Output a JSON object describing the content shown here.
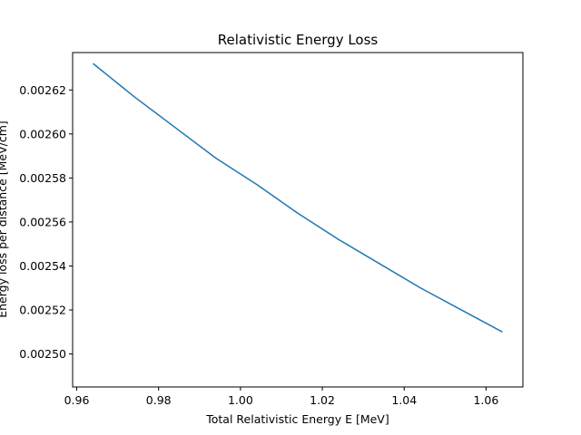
{
  "chart_data": {
    "type": "line",
    "title": "Relativistic Energy Loss",
    "xlabel": "Total Relativistic Energy E [MeV]",
    "ylabel": "Energy loss per distance [MeV/cm]",
    "xlim": [
      0.959,
      1.069
    ],
    "ylim": [
      0.002485,
      0.002637
    ],
    "x_ticks": [
      0.96,
      0.98,
      1.0,
      1.02,
      1.04,
      1.06
    ],
    "x_tick_labels": [
      "0.96",
      "0.98",
      "1.00",
      "1.02",
      "1.04",
      "1.06"
    ],
    "y_ticks": [
      0.0025,
      0.00252,
      0.00254,
      0.00256,
      0.00258,
      0.0026,
      0.00262
    ],
    "y_tick_labels": [
      "0.00250",
      "0.00252",
      "0.00254",
      "0.00256",
      "0.00258",
      "0.00260",
      "0.00262"
    ],
    "grid": false,
    "series": [
      {
        "color": "#1f77b4",
        "x": [
          0.964,
          0.974,
          0.984,
          0.994,
          1.004,
          1.014,
          1.024,
          1.034,
          1.044,
          1.054,
          1.064
        ],
        "y": [
          0.002632,
          0.002617,
          0.002603,
          0.002589,
          0.002577,
          0.002564,
          0.002552,
          0.002541,
          0.00253,
          0.00252,
          0.00251
        ]
      }
    ]
  }
}
